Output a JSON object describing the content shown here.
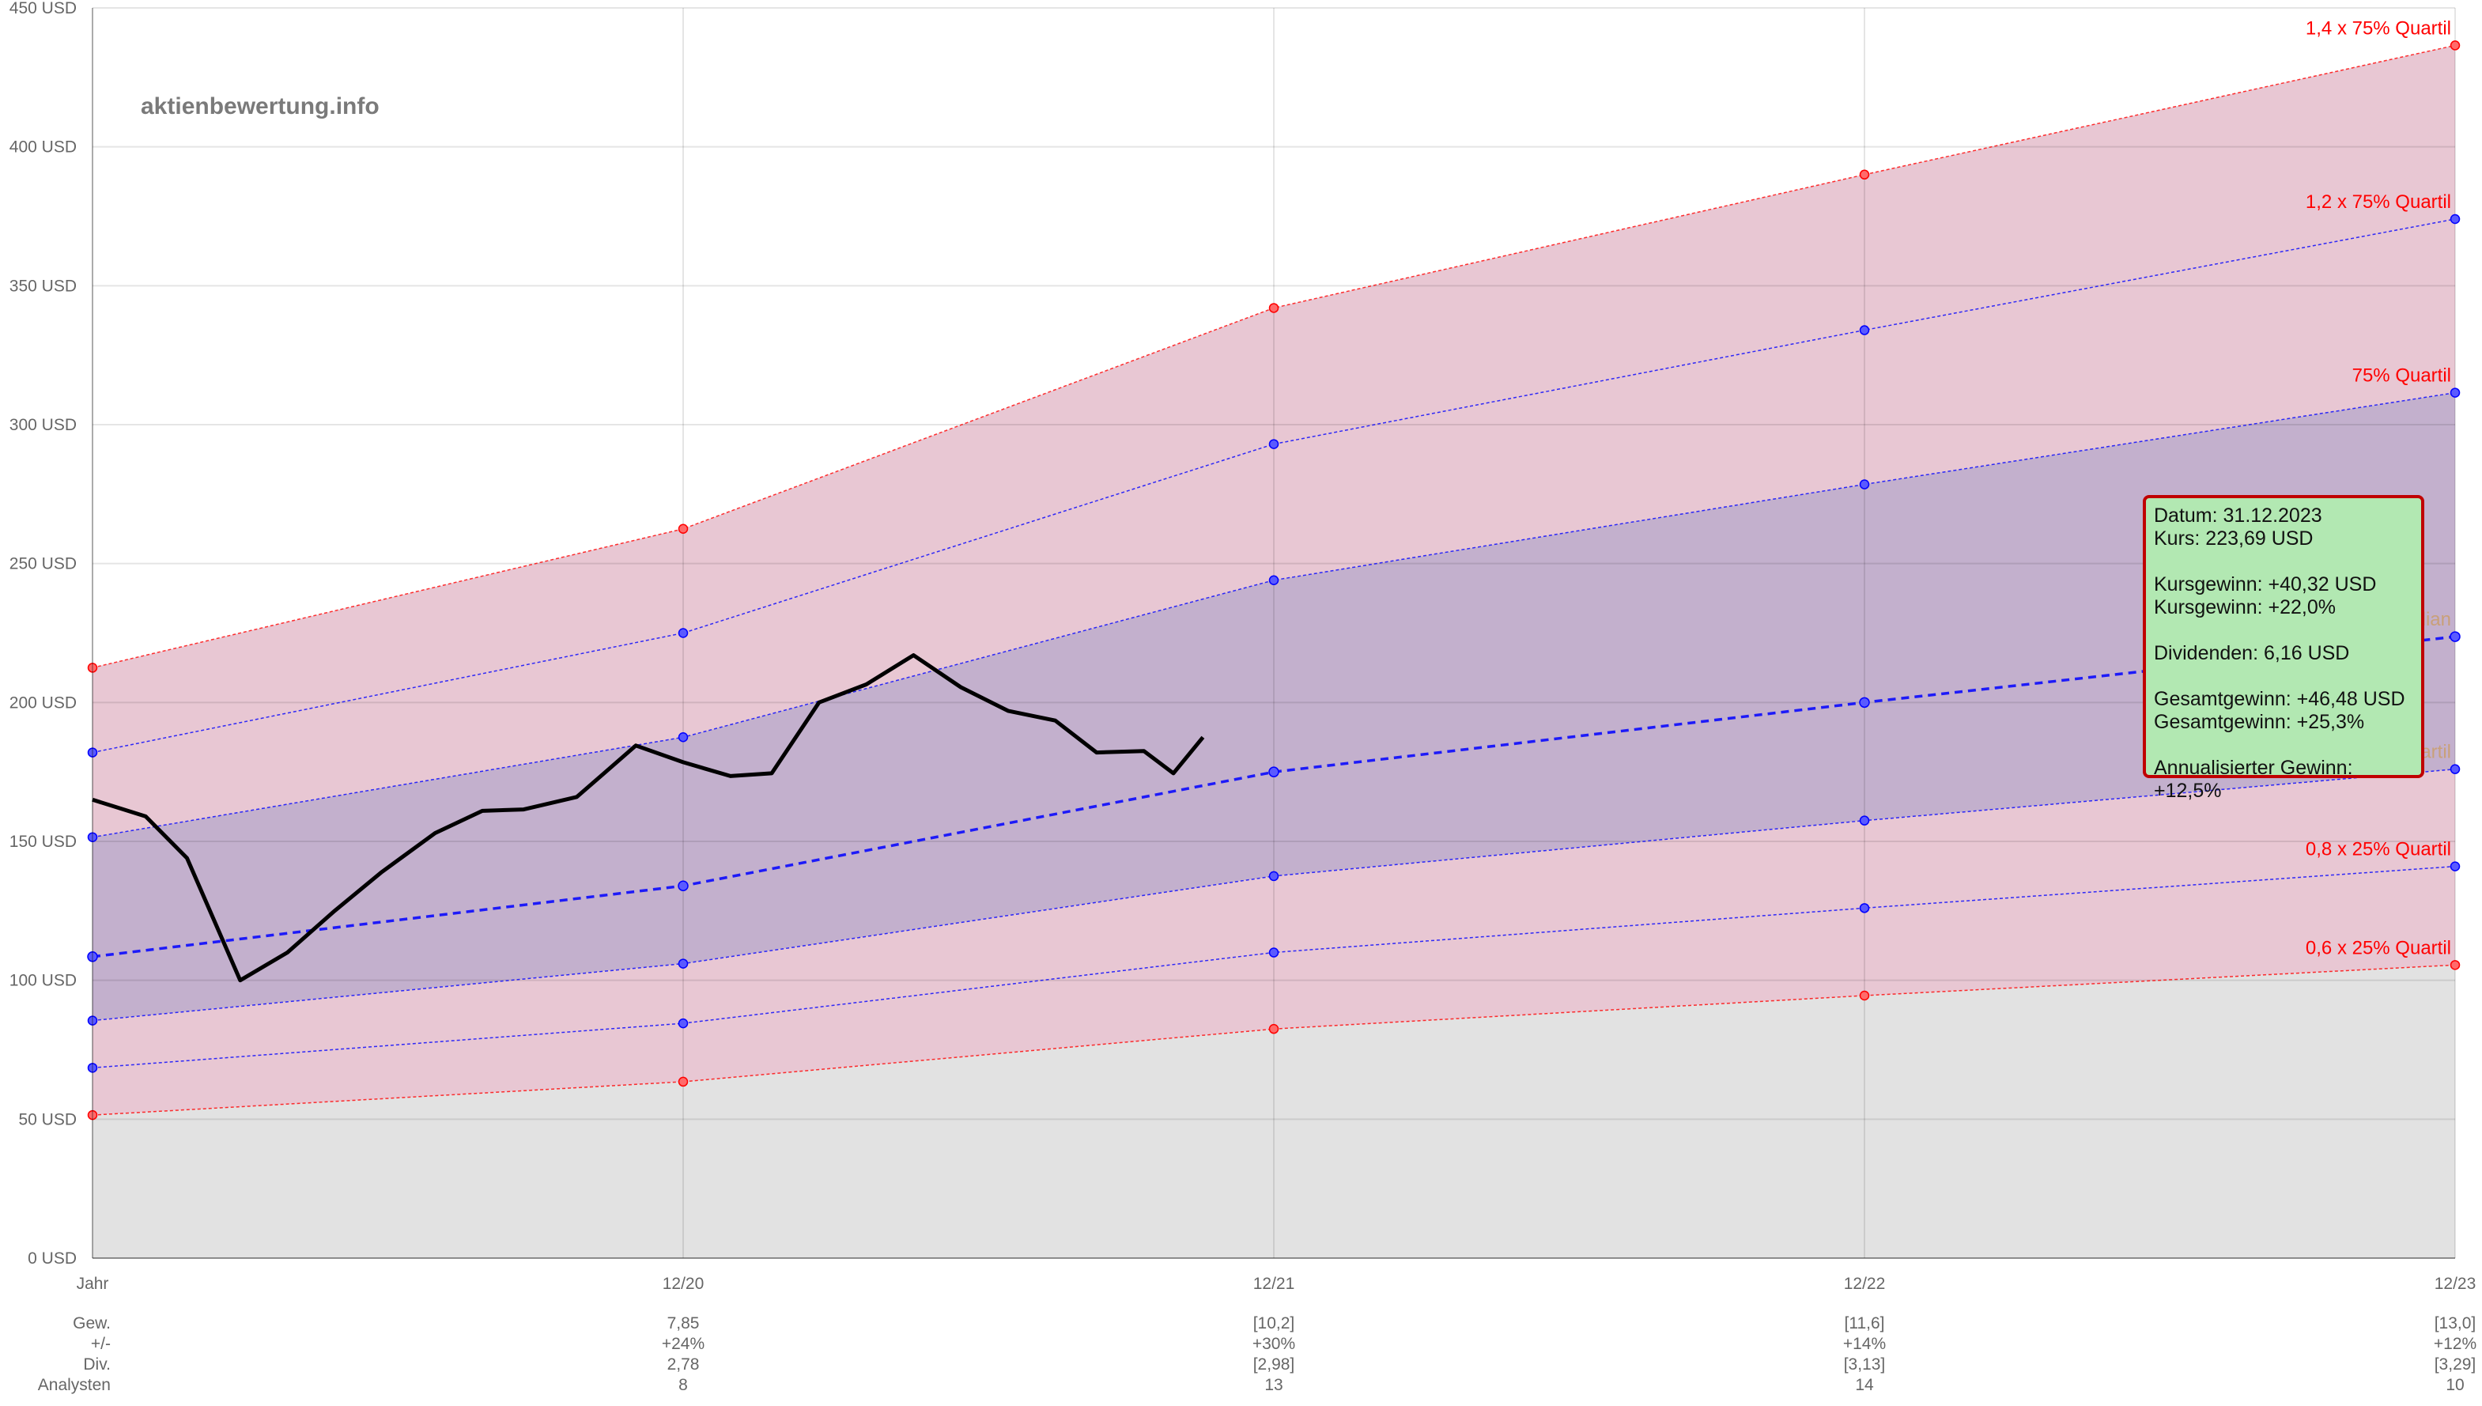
{
  "watermark": "aktienbewertung.info",
  "chart_data": {
    "type": "line",
    "x_labels": [
      "Jahr",
      "12/20",
      "12/21",
      "12/22",
      "12/23"
    ],
    "ylim": [
      0,
      450
    ],
    "y_ticks": [
      "0 USD",
      "50 USD",
      "100 USD",
      "150 USD",
      "200 USD",
      "250 USD",
      "300 USD",
      "350 USD",
      "400 USD",
      "450 USD"
    ],
    "y_tick_values": [
      0,
      50,
      100,
      150,
      200,
      250,
      300,
      350,
      400,
      450
    ],
    "grid": true,
    "band_series": [
      {
        "name": "1,4 x 75% Quartil",
        "color": "#ff0000",
        "values": [
          212.5,
          262.5,
          342,
          390,
          436.5
        ]
      },
      {
        "name": "1,2 x 75% Quartil",
        "color": "#0000ff",
        "values": [
          182,
          225,
          293,
          334,
          374
        ]
      },
      {
        "name": "75% Quartil",
        "color": "#0000ff",
        "values": [
          151.5,
          187.5,
          244,
          278.5,
          311.5
        ]
      },
      {
        "name": "Median",
        "color": "#0000ff",
        "values": [
          108.5,
          134,
          175,
          200,
          223.7
        ]
      },
      {
        "name": "25% Quartil",
        "color": "#0000ff",
        "values": [
          85.5,
          106,
          137.5,
          157.5,
          176
        ]
      },
      {
        "name": "0,8 x 25% Quartil",
        "color": "#0000ff",
        "values": [
          68.5,
          84.5,
          110,
          126,
          141
        ]
      },
      {
        "name": "0,6 x 25% Quartil",
        "color": "#ff0000",
        "values": [
          51.5,
          63.5,
          82.5,
          94.5,
          105.5
        ]
      }
    ],
    "price_series": {
      "x": [
        0,
        0.09,
        0.16,
        0.25,
        0.33,
        0.41,
        0.49,
        0.58,
        0.66,
        0.73,
        0.82,
        0.92,
        1.0,
        1.08,
        1.15,
        1.23,
        1.31,
        1.39,
        1.47,
        1.55,
        1.63,
        1.7,
        1.78,
        1.83,
        1.88
      ],
      "values": [
        165,
        159,
        144,
        100,
        110,
        125,
        139,
        153,
        161,
        161.5,
        166,
        184.5,
        178.5,
        173.5,
        174.5,
        200,
        206.5,
        217,
        205.5,
        197,
        193.5,
        182,
        182.5,
        174.5,
        187.5
      ]
    },
    "table": {
      "row_labels": [
        "Gew.",
        "+/-",
        "Div.",
        "Analysten"
      ],
      "columns": [
        [
          "7,85",
          "+24%",
          "2,78",
          "8"
        ],
        [
          "[10,2]",
          "+30%",
          "[2,98]",
          "13"
        ],
        [
          "[11,6]",
          "+14%",
          "[3,13]",
          "14"
        ],
        [
          "[13,0]",
          "+12%",
          "[3,29]",
          "10"
        ]
      ]
    }
  },
  "tooltip": {
    "lines": [
      "Datum: 31.12.2023",
      "Kurs: 223,69 USD",
      "",
      "Kursgewinn: +40,32 USD",
      "Kursgewinn: +22,0%",
      "",
      "Dividenden: 6,16 USD",
      "",
      "Gesamtgewinn: +46,48 USD",
      "Gesamtgewinn: +25,3%",
      "",
      "Annualisierter Gewinn: +12,5%"
    ]
  }
}
